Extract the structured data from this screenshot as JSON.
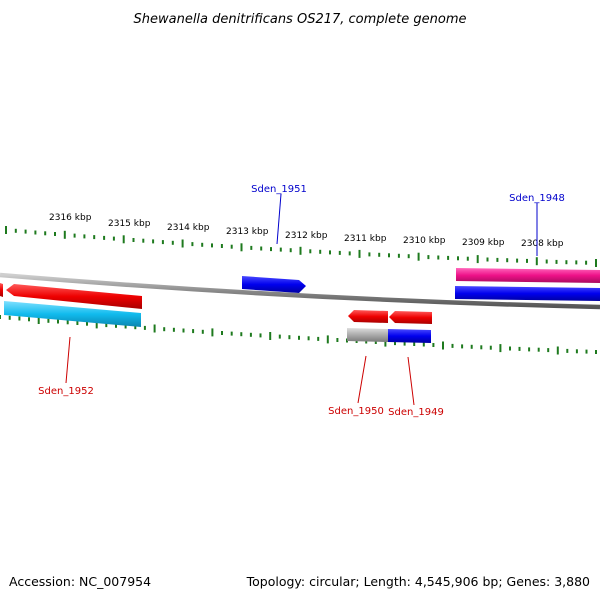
{
  "title": "Shewanella denitrificans OS217, complete genome",
  "footer": {
    "accession": "Accession: NC_007954",
    "summary": "Topology: circular; Length: 4,545,906 bp; Genes: 3,880"
  },
  "scale_labels": [
    "2316 kbp",
    "2315 kbp",
    "2314 kbp",
    "2313 kbp",
    "2312 kbp",
    "2311 kbp",
    "2310 kbp",
    "2309 kbp",
    "2308 kbp"
  ],
  "gene_labels": [
    "Sden_1951",
    "Sden_1948",
    "Sden_1952",
    "Sden_1950",
    "Sden_1949"
  ],
  "colors": {
    "forward_label": "#0000cc",
    "reverse_label": "#cc0000",
    "tick": "#1e7a1e",
    "backbone": "#888888",
    "gene_red": "#ee0000",
    "gene_blue": "#0000ee",
    "gene_cyan": "#11bbee",
    "gene_pink": "#ee1188",
    "gene_grey": "#aaaaaa"
  }
}
